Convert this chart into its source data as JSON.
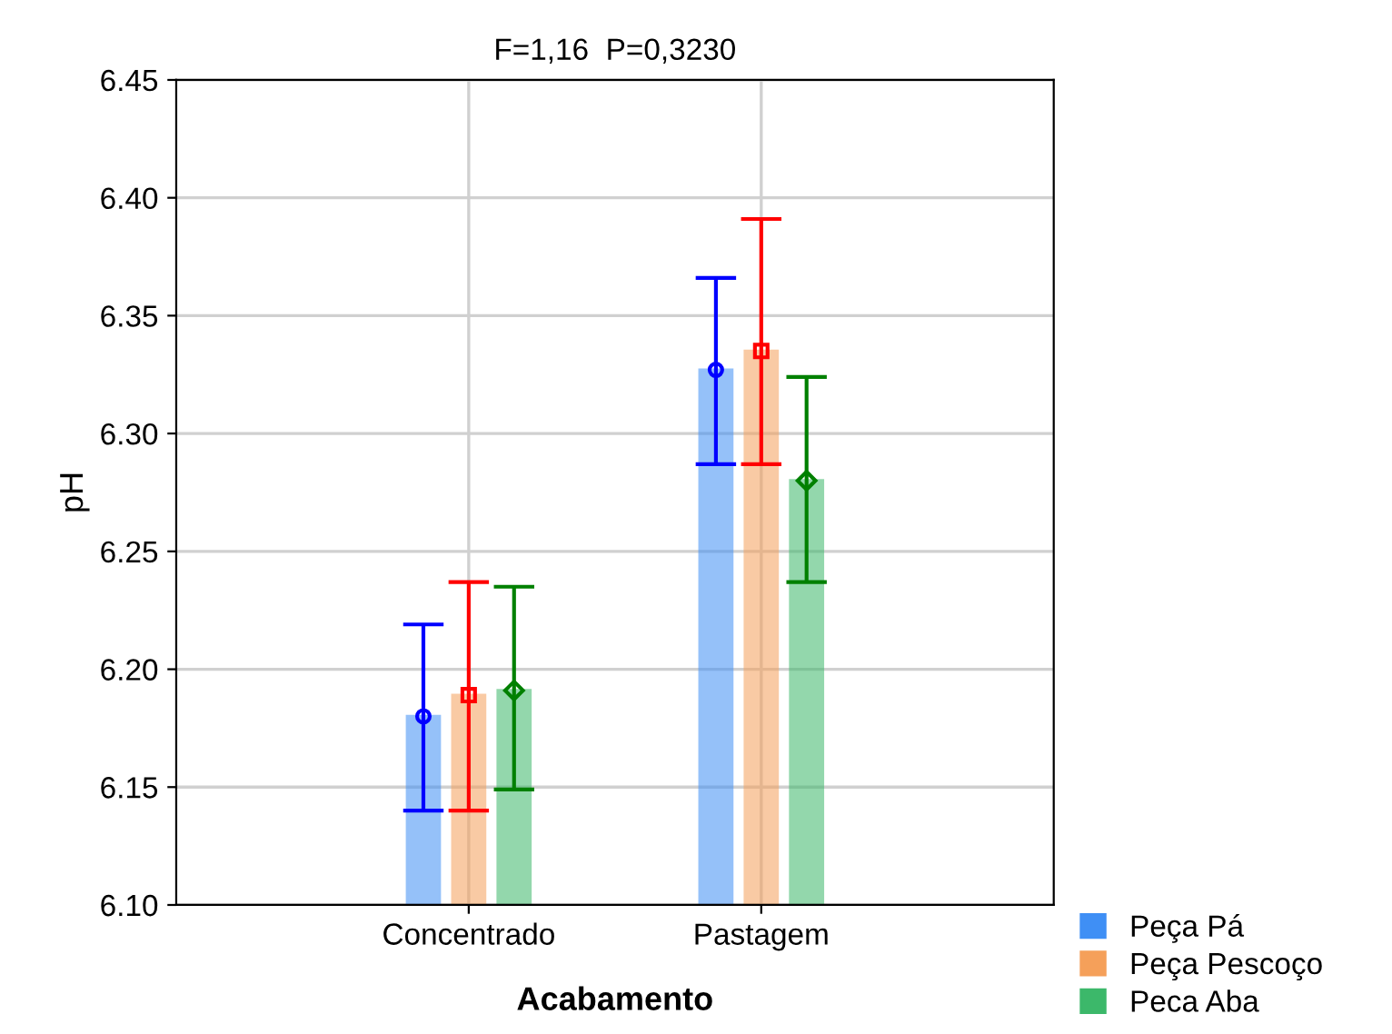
{
  "chart_data": {
    "type": "bar",
    "title": "F=1,16  P=0,3230",
    "xlabel": "Acabamento",
    "ylabel": "pH",
    "categories": [
      "Concentrado",
      "Pastagem"
    ],
    "series": [
      {
        "name": "Peça Pá",
        "color": "#3f8ff5",
        "values": [
          6.18,
          6.327
        ]
      },
      {
        "name": "Peça Pescoço",
        "color": "#f5a05a",
        "values": [
          6.189,
          6.335
        ]
      },
      {
        "name": "Peca Aba",
        "color": "#3cb86a",
        "values": [
          6.191,
          6.28
        ]
      },
      {
        "type": "scatter",
        "x": [
          "Concentrado",
          "Pastagem"
        ],
        "color": "#0000ff",
        "marker": "circle",
        "values": [
          6.18,
          6.327
        ],
        "errors": [
          [
            6.14,
            6.219
          ],
          [
            6.287,
            6.366
          ]
        ]
      },
      {
        "type": "scatter",
        "x": [
          "Concentrado",
          "Pastagem"
        ],
        "color": "#ff0000",
        "marker": "square",
        "values": [
          6.189,
          6.335
        ],
        "errors": [
          [
            6.14,
            6.237
          ],
          [
            6.287,
            6.391
          ]
        ]
      },
      {
        "type": "scatter",
        "x": [
          "Concentrado",
          "Pastagem"
        ],
        "color": "#008000",
        "marker": "diamond",
        "values": [
          6.191,
          6.28
        ],
        "errors": [
          [
            6.149,
            6.235
          ],
          [
            6.237,
            6.324
          ]
        ]
      }
    ],
    "ylim": [
      6.1,
      6.45
    ],
    "yticks": [
      {
        "value": 6.1,
        "label": "6.10"
      },
      6.15,
      {
        "value": 6.2,
        "label": "6.20"
      },
      6.25,
      {
        "value": 6.3,
        "label": "6.30"
      },
      6.35,
      {
        "value": 6.4,
        "label": "6.40"
      },
      6.45
    ],
    "grid": true,
    "legend": "bottom right"
  }
}
